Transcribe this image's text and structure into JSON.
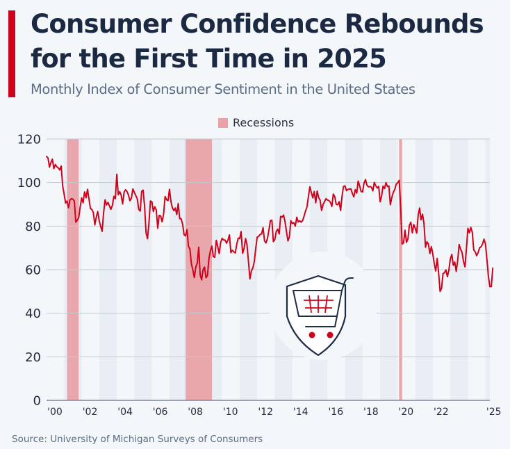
{
  "header": {
    "title": "Consumer Confidence Rebounds for the First Time in 2025",
    "subtitle": "Monthly Index of Consumer Sentiment in the United States",
    "accent_color": "#d0021b"
  },
  "legend": {
    "label": "Recessions",
    "color": "#e8a2a8"
  },
  "icon": {
    "name": "shopping-cart-shield-icon"
  },
  "source": "Source: University of Michigan Surveys of Consumers",
  "chart_data": {
    "type": "line",
    "title": "Consumer Confidence Rebounds for the First Time in 2025",
    "subtitle": "Monthly Index of Consumer Sentiment in the United States",
    "xlabel": "",
    "ylabel": "",
    "ylim": [
      0,
      120
    ],
    "yticks": [
      0,
      20,
      40,
      60,
      80,
      100,
      120
    ],
    "xlim": [
      2000.0,
      2025.25
    ],
    "xticks": [
      {
        "value": 2000,
        "label": "'00"
      },
      {
        "value": 2002,
        "label": "'02"
      },
      {
        "value": 2004,
        "label": "'04"
      },
      {
        "value": 2006,
        "label": "'06"
      },
      {
        "value": 2008,
        "label": "'08"
      },
      {
        "value": 2010,
        "label": "'10"
      },
      {
        "value": 2012,
        "label": "'12"
      },
      {
        "value": 2014,
        "label": "'14"
      },
      {
        "value": 2016,
        "label": "'16"
      },
      {
        "value": 2018,
        "label": "'18"
      },
      {
        "value": 2020,
        "label": "'20"
      },
      {
        "value": 2022,
        "label": "'22"
      },
      {
        "value": 2025,
        "label": "'25"
      }
    ],
    "grid": true,
    "legend_position": "top-center",
    "line_color": "#d0021b",
    "recessions": [
      {
        "start": 2001.17,
        "end": 2001.83
      },
      {
        "start": 2007.92,
        "end": 2009.42
      },
      {
        "start": 2020.08,
        "end": 2020.25
      }
    ],
    "series": [
      {
        "name": "Index of Consumer Sentiment",
        "start": 2000.0,
        "frequency": "monthly",
        "values": [
          112.0,
          111.3,
          107.1,
          109.2,
          110.7,
          106.4,
          108.3,
          107.3,
          106.8,
          105.8,
          107.6,
          98.4,
          94.7,
          90.6,
          91.5,
          88.4,
          92.0,
          92.6,
          92.4,
          91.5,
          81.8,
          82.7,
          83.9,
          88.8,
          93.0,
          90.7,
          95.7,
          93.0,
          96.9,
          92.4,
          88.1,
          87.6,
          86.1,
          80.6,
          84.2,
          86.7,
          82.4,
          79.9,
          77.6,
          86.0,
          92.1,
          89.7,
          90.9,
          89.3,
          87.7,
          89.6,
          93.7,
          92.6,
          103.8,
          94.4,
          95.8,
          94.2,
          90.2,
          95.6,
          96.7,
          95.9,
          94.2,
          91.7,
          92.8,
          97.1,
          95.5,
          94.1,
          92.6,
          87.7,
          86.9,
          96.0,
          96.5,
          89.1,
          76.9,
          74.2,
          81.6,
          91.5,
          91.2,
          86.7,
          88.9,
          87.4,
          79.1,
          84.9,
          84.7,
          82.0,
          85.4,
          93.6,
          92.1,
          91.7,
          96.9,
          91.3,
          88.4,
          87.1,
          88.3,
          85.3,
          90.4,
          83.4,
          83.4,
          80.9,
          76.1,
          75.5,
          78.4,
          70.8,
          69.5,
          62.6,
          59.8,
          56.4,
          61.2,
          63.0,
          70.3,
          57.6,
          55.3,
          60.1,
          61.2,
          56.3,
          57.3,
          65.1,
          68.7,
          70.8,
          66.0,
          65.7,
          73.5,
          70.6,
          67.4,
          72.5,
          74.4,
          73.6,
          73.6,
          72.2,
          73.6,
          76.0,
          67.8,
          68.9,
          68.2,
          67.7,
          71.6,
          74.5,
          74.2,
          77.5,
          67.5,
          69.8,
          74.3,
          71.5,
          63.7,
          55.8,
          59.5,
          60.8,
          63.7,
          69.9,
          75.0,
          75.3,
          76.2,
          76.4,
          79.3,
          73.2,
          72.3,
          74.3,
          78.3,
          82.6,
          82.7,
          72.9,
          73.8,
          77.6,
          78.6,
          76.4,
          84.5,
          84.1,
          85.1,
          82.1,
          77.5,
          73.2,
          75.1,
          82.5,
          81.2,
          81.6,
          80.0,
          84.1,
          81.9,
          82.5,
          81.8,
          82.5,
          84.6,
          86.9,
          88.8,
          93.6,
          98.1,
          95.4,
          93.0,
          95.9,
          90.7,
          96.1,
          93.1,
          91.9,
          87.2,
          90.0,
          91.3,
          92.6,
          92.0,
          91.7,
          91.0,
          89.0,
          94.7,
          93.5,
          90.0,
          89.8,
          91.2,
          87.2,
          93.8,
          98.2,
          98.5,
          96.3,
          96.9,
          97.0,
          97.1,
          95.0,
          93.4,
          96.8,
          95.1,
          100.7,
          98.5,
          95.9,
          95.7,
          99.7,
          101.4,
          98.8,
          98.0,
          98.2,
          97.9,
          96.2,
          100.1,
          98.6,
          97.5,
          98.3,
          91.2,
          93.8,
          98.4,
          97.2,
          100.0,
          98.2,
          98.4,
          89.8,
          93.2,
          95.5,
          96.8,
          99.3,
          99.8,
          101.0,
          89.1,
          71.8,
          72.3,
          78.1,
          72.5,
          74.1,
          80.4,
          81.8,
          76.9,
          80.7,
          79.0,
          76.8,
          84.9,
          88.3,
          82.9,
          85.5,
          81.2,
          70.3,
          72.8,
          71.7,
          67.4,
          70.6,
          67.2,
          62.8,
          59.4,
          65.2,
          58.4,
          50.0,
          51.5,
          58.2,
          58.6,
          59.9,
          56.8,
          59.7,
          64.9,
          67.0,
          62.0,
          63.5,
          59.2,
          64.2,
          71.6,
          69.4,
          67.9,
          63.8,
          61.3,
          69.7,
          79.0,
          76.9,
          79.4,
          77.2,
          69.1,
          68.2,
          66.4,
          67.9,
          70.1,
          70.5,
          71.8,
          74.0,
          71.7,
          64.7,
          57.0,
          52.2,
          52.2,
          60.7
        ]
      }
    ]
  }
}
